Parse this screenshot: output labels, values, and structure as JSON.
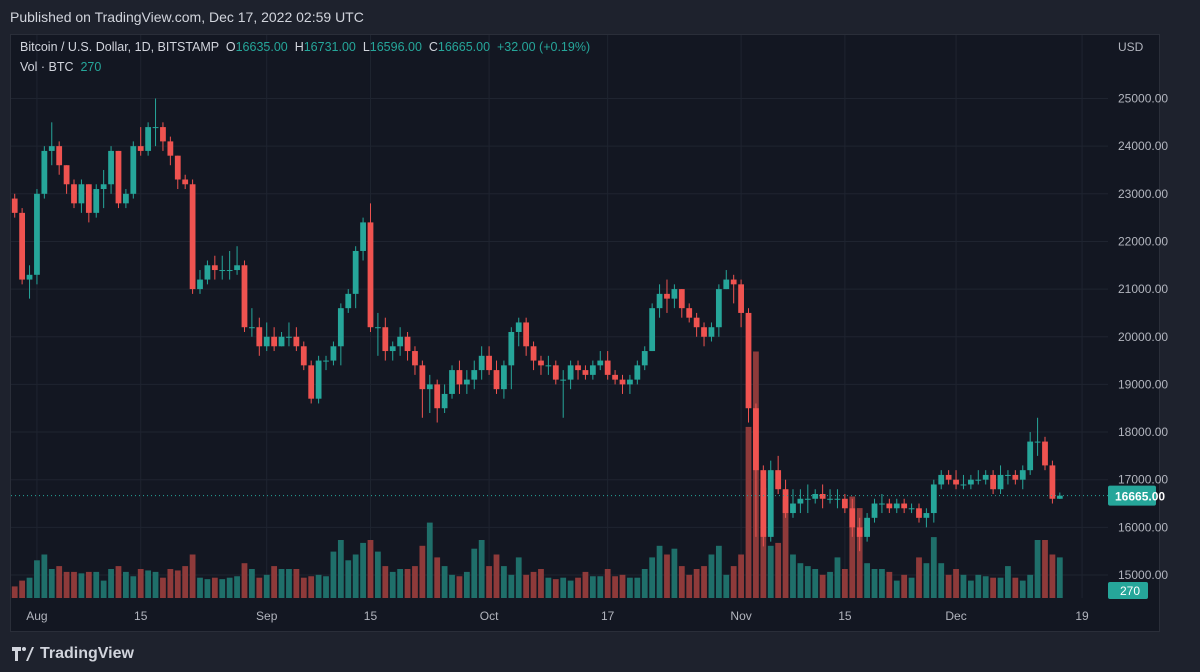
{
  "header": {
    "published": "Published on TradingView.com, Dec 17, 2022 02:59 UTC"
  },
  "legend": {
    "symbol": "Bitcoin / U.S. Dollar, 1D, BITSTAMP",
    "o_label": "O",
    "o_value": "16635.00",
    "h_label": "H",
    "h_value": "16731.00",
    "l_label": "L",
    "l_value": "16596.00",
    "c_label": "C",
    "c_value": "16665.00",
    "change": "+32.00 (+0.19%)",
    "vol_label": "Vol · BTC",
    "vol_value": "270"
  },
  "footer": {
    "brand": "TradingView"
  },
  "colors": {
    "up": "#26a69a",
    "down": "#ef5350",
    "up_vol": "#1f6f6a",
    "down_vol": "#8e3a3a",
    "bg": "#131722",
    "grid": "#1f2430"
  },
  "chart_data": {
    "type": "candlestick",
    "currency": "USD",
    "y_ticks": [
      15000,
      16000,
      17000,
      18000,
      19000,
      20000,
      21000,
      22000,
      23000,
      24000,
      25000
    ],
    "y_tick_labels": [
      "15000.00",
      "16000.00",
      "17000.00",
      "18000.00",
      "19000.00",
      "20000.00",
      "21000.00",
      "22000.00",
      "23000.00",
      "24000.00",
      "25000.00"
    ],
    "ylim": [
      14500,
      26000
    ],
    "x_labels": [
      "Aug",
      "15",
      "Sep",
      "15",
      "Oct",
      "17",
      "Nov",
      "15",
      "Dec",
      "19"
    ],
    "x_label_index": [
      3,
      17,
      34,
      48,
      64,
      80,
      98,
      112,
      127,
      144
    ],
    "last_price_label": "16665.00",
    "last_price": 16665,
    "last_volume_label": "270",
    "start": 22900,
    "closes": [
      22600,
      21200,
      21300,
      23000,
      23900,
      24000,
      23600,
      23200,
      22800,
      23200,
      22600,
      23100,
      23200,
      23900,
      22800,
      23000,
      24000,
      23900,
      24400,
      24400,
      24100,
      23800,
      23300,
      23200,
      21000,
      21200,
      21500,
      21400,
      21400,
      21400,
      21500,
      20200,
      20200,
      19800,
      20000,
      19800,
      20000,
      20000,
      19800,
      19400,
      18700,
      19500,
      19500,
      19800,
      20600,
      20900,
      21800,
      22400,
      20200,
      20200,
      19700,
      19800,
      20000,
      19700,
      19400,
      18900,
      19000,
      18500,
      18800,
      19300,
      19000,
      19100,
      19300,
      19600,
      19300,
      18900,
      19400,
      20100,
      20300,
      19800,
      19500,
      19400,
      19400,
      19100,
      19100,
      19400,
      19300,
      19200,
      19400,
      19500,
      19200,
      19100,
      19000,
      19100,
      19400,
      19700,
      20600,
      20900,
      20800,
      21000,
      20600,
      20400,
      20200,
      20000,
      20200,
      21000,
      21200,
      21100,
      20500,
      18500,
      17200,
      15800,
      17200,
      16800,
      16300,
      16500,
      16600,
      16600,
      16700,
      16600,
      16600,
      16600,
      16400,
      16000,
      15800,
      16200,
      16500,
      16500,
      16400,
      16500,
      16400,
      16400,
      16200,
      16300,
      16900,
      17100,
      17000,
      16900,
      16900,
      17000,
      17000,
      17100,
      16800,
      17100,
      17100,
      17000,
      17200,
      17800,
      17800,
      17300,
      16600,
      16665
    ],
    "highs": [
      23000,
      22700,
      21500,
      23100,
      24000,
      24500,
      24100,
      23600,
      23300,
      23300,
      23200,
      23200,
      23500,
      24000,
      23900,
      23100,
      24100,
      24400,
      24500,
      25000,
      24500,
      24200,
      23800,
      23400,
      23300,
      21400,
      21600,
      21700,
      21700,
      21800,
      21900,
      21600,
      20600,
      20400,
      20300,
      20200,
      20100,
      20300,
      20200,
      19900,
      19500,
      19600,
      19600,
      19900,
      20700,
      21000,
      21900,
      22500,
      22800,
      20500,
      20400,
      19900,
      20200,
      20100,
      19800,
      19500,
      19200,
      19100,
      19000,
      19400,
      19500,
      19300,
      19500,
      19800,
      19800,
      19500,
      19500,
      20200,
      20400,
      20400,
      19900,
      19600,
      19600,
      19500,
      19300,
      19500,
      19500,
      19400,
      19500,
      19700,
      19700,
      19300,
      19200,
      19200,
      19500,
      19800,
      20700,
      21100,
      21200,
      21100,
      21000,
      20700,
      20500,
      20300,
      20300,
      21100,
      21400,
      21300,
      21200,
      20600,
      18600,
      17300,
      17400,
      17500,
      17000,
      16800,
      16800,
      16900,
      16800,
      16900,
      16800,
      16800,
      16700,
      16600,
      16200,
      16300,
      16600,
      16700,
      16600,
      16600,
      16600,
      16500,
      16500,
      16400,
      17000,
      17200,
      17200,
      17200,
      17100,
      17100,
      17200,
      17200,
      17200,
      17300,
      17200,
      17200,
      17300,
      18000,
      18300,
      17900,
      17400,
      16731
    ],
    "lows": [
      22500,
      21100,
      20800,
      21100,
      22900,
      23600,
      23400,
      23000,
      22700,
      22600,
      22400,
      22500,
      22700,
      23000,
      22700,
      22700,
      22900,
      23800,
      23800,
      24000,
      23900,
      23600,
      23100,
      23100,
      20900,
      20900,
      21100,
      21200,
      21200,
      21200,
      21300,
      20100,
      20000,
      19600,
      19700,
      19700,
      19800,
      19800,
      19700,
      19300,
      18600,
      18600,
      19300,
      19400,
      19400,
      20500,
      20600,
      21600,
      20100,
      19600,
      19500,
      19500,
      19600,
      19500,
      19200,
      18300,
      18400,
      18200,
      18400,
      18700,
      18800,
      18800,
      18900,
      19100,
      19200,
      18800,
      18700,
      18900,
      19800,
      19600,
      19300,
      19200,
      19200,
      19000,
      18300,
      18900,
      19100,
      19100,
      19100,
      19300,
      19100,
      19000,
      18800,
      18800,
      19000,
      19300,
      19700,
      20400,
      20500,
      20600,
      20400,
      20300,
      20000,
      19800,
      19900,
      20000,
      21000,
      20700,
      20200,
      18200,
      15800,
      15600,
      15700,
      16700,
      16200,
      16200,
      16300,
      16300,
      16500,
      16400,
      16500,
      16400,
      16300,
      15800,
      15500,
      15700,
      16100,
      16300,
      16300,
      16300,
      16300,
      16300,
      16100,
      16000,
      16100,
      16800,
      16900,
      16800,
      16800,
      16800,
      16900,
      16900,
      16700,
      16700,
      16900,
      16900,
      16800,
      17100,
      17500,
      17200,
      16500,
      16596
    ],
    "volumes": [
      8,
      12,
      14,
      26,
      30,
      20,
      22,
      18,
      18,
      17,
      18,
      18,
      12,
      20,
      22,
      18,
      15,
      20,
      19,
      18,
      14,
      20,
      19,
      22,
      30,
      14,
      13,
      14,
      13,
      14,
      15,
      24,
      20,
      14,
      16,
      22,
      20,
      20,
      20,
      14,
      15,
      16,
      15,
      32,
      40,
      26,
      30,
      38,
      40,
      32,
      22,
      18,
      20,
      20,
      22,
      36,
      52,
      28,
      22,
      16,
      15,
      18,
      34,
      40,
      22,
      30,
      22,
      16,
      28,
      16,
      18,
      20,
      14,
      13,
      14,
      12,
      14,
      18,
      15,
      15,
      20,
      15,
      16,
      14,
      14,
      20,
      28,
      36,
      30,
      34,
      22,
      16,
      20,
      22,
      30,
      36,
      16,
      22,
      30,
      118,
      170,
      76,
      36,
      38,
      68,
      30,
      24,
      22,
      20,
      16,
      18,
      28,
      20,
      70,
      62,
      24,
      20,
      20,
      18,
      12,
      16,
      14,
      28,
      24,
      42,
      24,
      16,
      20,
      16,
      12,
      16,
      15,
      14,
      14,
      22,
      14,
      12,
      16,
      40,
      40,
      30,
      28,
      2
    ]
  }
}
